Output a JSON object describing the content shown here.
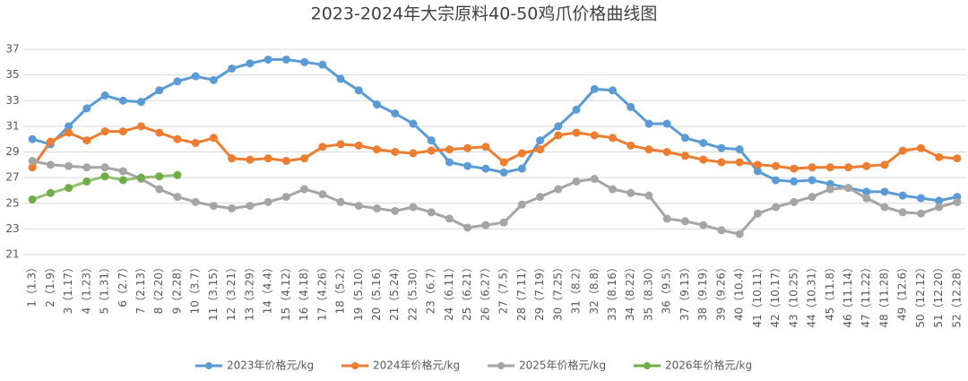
{
  "chart_data": {
    "type": "line",
    "title": "2023-2024年大宗原料40-50鸡爪价格曲线图",
    "categories": [
      "1（1.3）",
      "2（1.9）",
      "3（1.17）",
      "4（1.23）",
      "5（1.31）",
      "6（2.7）",
      "7（2.13）",
      "8（2.20）",
      "9（2.28）",
      "10（3.7）",
      "11（3.15）",
      "12（3.21）",
      "13（3.29）",
      "14（4.4）",
      "15（4.12）",
      "16（4.18）",
      "17（4.26）",
      "18（5.2）",
      "19（5.10）",
      "20（5.16）",
      "21（5.24）",
      "22（5.30）",
      "23（6.7）",
      "24（6.11）",
      "25（6.21）",
      "26（6.27）",
      "27（7.5）",
      "28（7.11）",
      "29（7.19）",
      "30（7.25）",
      "31（8.2）",
      "32（8.8）",
      "33（8.16）",
      "34（8.22）",
      "35（8.30）",
      "36（9.5）",
      "37（9.13）",
      "38（9.19）",
      "39（9.26）",
      "40（10.4）",
      "41（10.11）",
      "42（10.17）",
      "43（10.25）",
      "44（10.31）",
      "45（11.8）",
      "46（11.14）",
      "47（11.22）",
      "48（11.28）",
      "49（12.6）",
      "50（12.12）",
      "51（12.20）",
      "52（12.28）"
    ],
    "series": [
      {
        "name": "2023年价格元/kg",
        "color": "#5b9bd5",
        "values": [
          30.0,
          29.6,
          31.0,
          32.4,
          33.4,
          33.0,
          32.9,
          33.8,
          34.5,
          34.9,
          34.6,
          35.5,
          35.9,
          36.2,
          36.2,
          36.0,
          35.8,
          34.7,
          33.8,
          32.7,
          32.0,
          31.2,
          29.9,
          28.2,
          27.9,
          27.7,
          27.4,
          27.7,
          29.9,
          31.0,
          32.3,
          33.9,
          33.8,
          32.5,
          31.2,
          31.2,
          30.1,
          29.7,
          29.3,
          29.2,
          27.5,
          26.8,
          26.7,
          26.8,
          26.5,
          26.2,
          25.9,
          25.9,
          25.6,
          25.4,
          25.2,
          25.5
        ]
      },
      {
        "name": "2024年价格元/kg",
        "color": "#ed7d31",
        "values": [
          27.8,
          29.8,
          30.5,
          29.9,
          30.6,
          30.6,
          31.0,
          30.5,
          30.0,
          29.7,
          30.1,
          28.5,
          28.4,
          28.5,
          28.3,
          28.5,
          29.4,
          29.6,
          29.5,
          29.2,
          29.0,
          28.9,
          29.1,
          29.2,
          29.3,
          29.4,
          28.2,
          28.9,
          29.2,
          30.3,
          30.5,
          30.3,
          30.1,
          29.5,
          29.2,
          29.0,
          28.7,
          28.4,
          28.2,
          28.2,
          28.0,
          27.9,
          27.7,
          27.8,
          27.8,
          27.8,
          27.9,
          28.0,
          29.1,
          29.3,
          28.6,
          28.5
        ]
      },
      {
        "name": "2025年价格元/kg",
        "color": "#a5a5a5",
        "values": [
          28.3,
          28.0,
          27.9,
          27.8,
          27.8,
          27.5,
          26.9,
          26.1,
          25.5,
          25.1,
          24.8,
          24.6,
          24.8,
          25.1,
          25.5,
          26.1,
          25.7,
          25.1,
          24.8,
          24.6,
          24.4,
          24.7,
          24.3,
          23.8,
          23.1,
          23.3,
          23.5,
          24.9,
          25.5,
          26.1,
          26.7,
          26.9,
          26.1,
          25.8,
          25.6,
          23.8,
          23.6,
          23.3,
          22.9,
          22.6,
          24.2,
          24.7,
          25.1,
          25.5,
          26.1,
          26.2,
          25.4,
          24.7,
          24.3,
          24.2,
          24.7,
          25.1
        ]
      },
      {
        "name": "2026年价格元/kg",
        "color": "#70ad47",
        "values": [
          25.3,
          25.8,
          26.2,
          26.7,
          27.1,
          26.8,
          27.0,
          27.1,
          27.2,
          null,
          null,
          null,
          null,
          null,
          null,
          null,
          null,
          null,
          null,
          null,
          null,
          null,
          null,
          null,
          null,
          null,
          null,
          null,
          null,
          null,
          null,
          null,
          null,
          null,
          null,
          null,
          null,
          null,
          null,
          null,
          null,
          null,
          null,
          null,
          null,
          null,
          null,
          null,
          null,
          null,
          null,
          null
        ]
      }
    ],
    "ylim": [
      21,
      37
    ],
    "yticks": [
      21,
      23,
      25,
      27,
      29,
      31,
      33,
      35,
      37
    ],
    "grid": true,
    "legend": "bottom"
  }
}
